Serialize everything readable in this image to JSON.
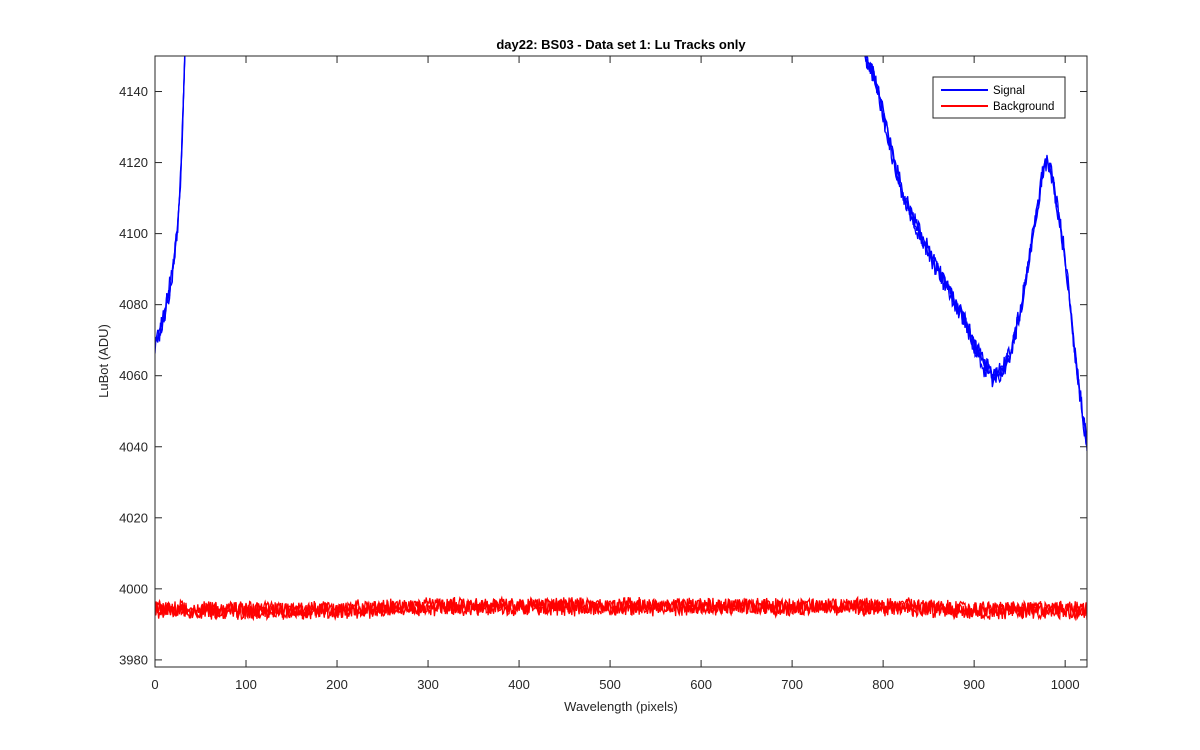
{
  "chart_data": {
    "type": "line",
    "title": "day22: BS03 - Data set 1: Lu Tracks only",
    "xlabel": "Wavelength (pixels)",
    "ylabel": "LuBot (ADU)",
    "xlim": [
      0,
      1024
    ],
    "ylim": [
      3978,
      4150
    ],
    "xticks": [
      0,
      100,
      200,
      300,
      400,
      500,
      600,
      700,
      800,
      900,
      1000
    ],
    "yticks": [
      3980,
      4000,
      4020,
      4040,
      4060,
      4080,
      4100,
      4120,
      4140
    ],
    "xtick_labels": [
      "0",
      "100",
      "200",
      "300",
      "400",
      "500",
      "600",
      "700",
      "800",
      "900",
      "1000"
    ],
    "ytick_labels": [
      "3980",
      "4000",
      "4020",
      "4040",
      "4060",
      "4080",
      "4100",
      "4120",
      "4140"
    ],
    "grid": false,
    "legend_position": "top-right",
    "noise_amplitude": {
      "Signal": 2.5,
      "Background": 2.2
    },
    "series": [
      {
        "name": "Signal",
        "color": "#0000ff",
        "x": [
          0,
          5,
          10,
          15,
          20,
          25,
          28,
          30,
          32,
          34,
          780,
          790,
          800,
          810,
          820,
          830,
          840,
          850,
          860,
          870,
          880,
          890,
          900,
          910,
          920,
          930,
          940,
          950,
          960,
          970,
          975,
          980,
          985,
          990,
          1000,
          1010,
          1020,
          1024
        ],
        "y": [
          4068,
          4072,
          4077,
          4083,
          4090,
          4102,
          4115,
          4128,
          4145,
          4160,
          4150,
          4144,
          4134,
          4122,
          4113,
          4106,
          4100,
          4095,
          4090,
          4085,
          4080,
          4075,
          4069,
          4063,
          4060,
          4061,
          4067,
          4077,
          4092,
          4108,
          4117,
          4120,
          4117,
          4110,
          4093,
          4068,
          4047,
          4041
        ]
      },
      {
        "name": "Background",
        "color": "#ff0000",
        "x": [
          0,
          100,
          200,
          300,
          400,
          500,
          600,
          700,
          800,
          900,
          1000,
          1024
        ],
        "y": [
          3994,
          3994,
          3994,
          3995,
          3995,
          3995,
          3995,
          3995,
          3995,
          3994,
          3994,
          3994
        ]
      }
    ]
  }
}
